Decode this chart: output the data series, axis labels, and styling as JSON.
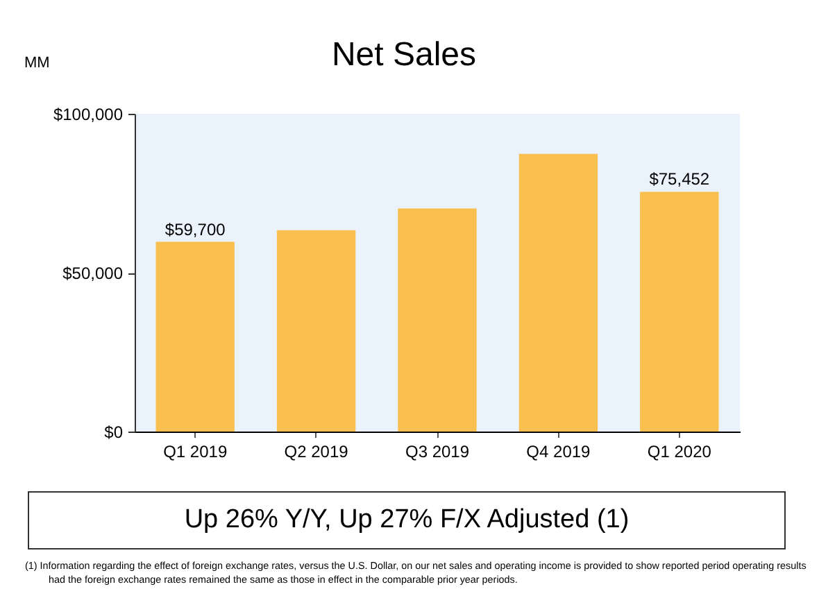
{
  "chart_data": {
    "type": "bar",
    "title": "Net Sales",
    "ylabel": "MM",
    "categories": [
      "Q1 2019",
      "Q2 2019",
      "Q3 2019",
      "Q4 2019",
      "Q1 2020"
    ],
    "values": [
      59700,
      63400,
      70200,
      87400,
      75452
    ],
    "value_labels": [
      "$59,700",
      null,
      null,
      null,
      "$75,452"
    ],
    "color": "#f9bf4f",
    "ylim": [
      0,
      100000
    ],
    "yticks": [
      {
        "value": 0,
        "label": "$0"
      },
      {
        "value": 50000,
        "label": "$50,000"
      },
      {
        "value": 100000,
        "label": "$100,000"
      }
    ],
    "grid": false,
    "annotations": [
      "Up 26% Y/Y, Up 27% F/X Adjusted (1)",
      "(1) Information regarding the effect of foreign exchange rates, versus the U.S. Dollar, on our net sales and operating income is provided to show reported period operating results had the foreign exchange rates remained the same as those in effect in the comparable prior year periods."
    ]
  }
}
